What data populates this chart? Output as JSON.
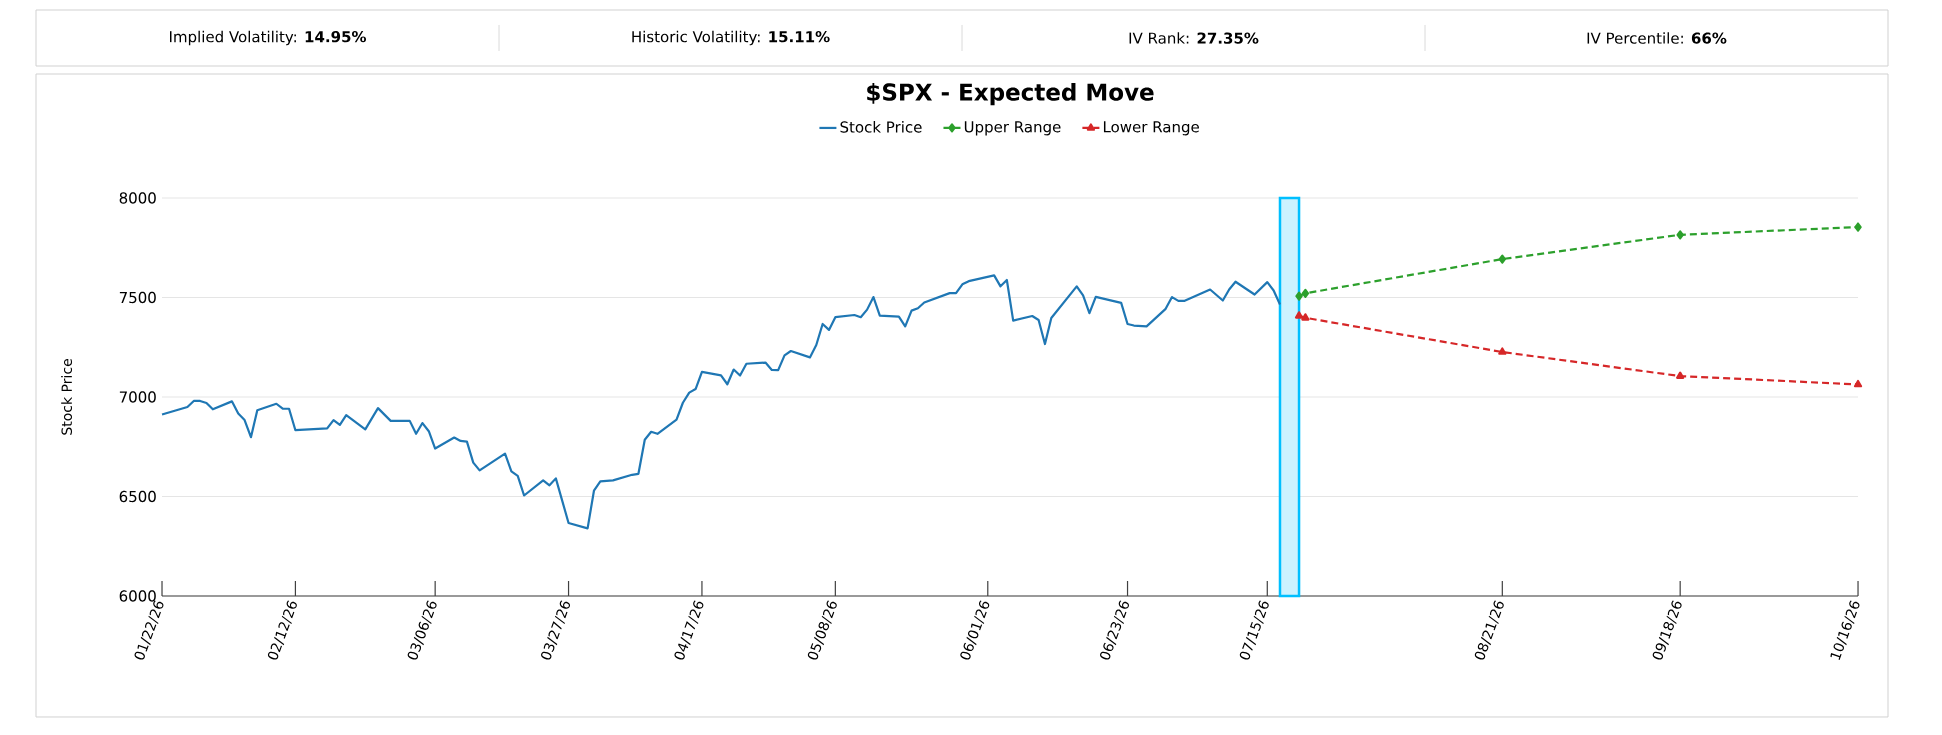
{
  "chart_data": {
    "type": "line",
    "title": "$SPX - Expected Move",
    "ylabel": "Stock Price",
    "annotations": [
      "Implied Volatility: **14.95%**",
      "Historic Volatility: **15.11%**",
      "IV Rank: **27.35%**",
      "IV Percentile: **66%**"
    ],
    "xlim": [
      "2026-01-22",
      "2026-10-16"
    ],
    "ylim": [
      6000,
      8000
    ],
    "xticks": [
      {
        "value": "2026-01-22",
        "label": "01/22/26"
      },
      {
        "value": "2026-02-12",
        "label": "02/12/26"
      },
      {
        "value": "2026-03-06",
        "label": "03/06/26"
      },
      {
        "value": "2026-03-27",
        "label": "03/27/26"
      },
      {
        "value": "2026-04-17",
        "label": "04/17/26"
      },
      {
        "value": "2026-05-08",
        "label": "05/08/26"
      },
      {
        "value": "2026-06-01",
        "label": "06/01/26"
      },
      {
        "value": "2026-06-23",
        "label": "06/23/26"
      },
      {
        "value": "2026-07-15",
        "label": "07/15/26"
      },
      {
        "value": "2026-08-21",
        "label": "08/21/26"
      },
      {
        "value": "2026-09-18",
        "label": "09/18/26"
      },
      {
        "value": "2026-10-16",
        "label": "10/16/26"
      }
    ],
    "yticks": [
      6000,
      6500,
      7000,
      7500,
      8000
    ],
    "grid": "y",
    "legend": "top",
    "bands": [
      {
        "axis": "x",
        "from": "2026-07-17",
        "to": "2026-07-20",
        "color": "#00bfff"
      }
    ],
    "series": [
      {
        "name": "Stock Price",
        "color": "#1f77b4",
        "marker": "none",
        "line_style": "solid",
        "x": [
          "2026-01-22",
          "2026-01-26",
          "2026-01-27",
          "2026-01-28",
          "2026-01-29",
          "2026-01-30",
          "2026-02-02",
          "2026-02-03",
          "2026-02-04",
          "2026-02-05",
          "2026-02-06",
          "2026-02-09",
          "2026-02-10",
          "2026-02-11",
          "2026-02-12",
          "2026-02-17",
          "2026-02-18",
          "2026-02-19",
          "2026-02-20",
          "2026-02-23",
          "2026-02-25",
          "2026-02-27",
          "2026-03-02",
          "2026-03-03",
          "2026-03-04",
          "2026-03-05",
          "2026-03-06",
          "2026-03-09",
          "2026-03-10",
          "2026-03-11",
          "2026-03-12",
          "2026-03-13",
          "2026-03-17",
          "2026-03-18",
          "2026-03-19",
          "2026-03-20",
          "2026-03-23",
          "2026-03-24",
          "2026-03-25",
          "2026-03-27",
          "2026-03-30",
          "2026-03-31",
          "2026-04-01",
          "2026-04-03",
          "2026-04-06",
          "2026-04-07",
          "2026-04-08",
          "2026-04-09",
          "2026-04-10",
          "2026-04-13",
          "2026-04-14",
          "2026-04-15",
          "2026-04-16",
          "2026-04-17",
          "2026-04-20",
          "2026-04-21",
          "2026-04-22",
          "2026-04-23",
          "2026-04-24",
          "2026-04-27",
          "2026-04-28",
          "2026-04-29",
          "2026-04-30",
          "2026-05-01",
          "2026-05-04",
          "2026-05-05",
          "2026-05-06",
          "2026-05-07",
          "2026-05-08",
          "2026-05-11",
          "2026-05-12",
          "2026-05-13",
          "2026-05-14",
          "2026-05-15",
          "2026-05-18",
          "2026-05-19",
          "2026-05-20",
          "2026-05-21",
          "2026-05-22",
          "2026-05-26",
          "2026-05-27",
          "2026-05-28",
          "2026-05-29",
          "2026-06-02",
          "2026-06-03",
          "2026-06-04",
          "2026-06-05",
          "2026-06-08",
          "2026-06-09",
          "2026-06-10",
          "2026-06-11",
          "2026-06-15",
          "2026-06-16",
          "2026-06-17",
          "2026-06-18",
          "2026-06-22",
          "2026-06-23",
          "2026-06-24",
          "2026-06-26",
          "2026-06-29",
          "2026-06-30",
          "2026-07-01",
          "2026-07-02",
          "2026-07-06",
          "2026-07-08",
          "2026-07-09",
          "2026-07-10",
          "2026-07-13",
          "2026-07-15",
          "2026-07-16",
          "2026-07-17"
        ],
        "values": [
          6912,
          6950,
          6980,
          6980,
          6970,
          6938,
          6978,
          6917,
          6884,
          6798,
          6933,
          6966,
          6941,
          6941,
          6833,
          6842,
          6884,
          6860,
          6909,
          6837,
          6944,
          6880,
          6880,
          6815,
          6869,
          6828,
          6741,
          6796,
          6779,
          6776,
          6670,
          6631,
          6715,
          6626,
          6604,
          6505,
          6581,
          6556,
          6591,
          6367,
          6340,
          6529,
          6576,
          6581,
          6609,
          6614,
          6785,
          6825,
          6815,
          6886,
          6971,
          7022,
          7040,
          7126,
          7109,
          7064,
          7138,
          7108,
          7167,
          7173,
          7136,
          7135,
          7209,
          7231,
          7199,
          7261,
          7367,
          7337,
          7401,
          7412,
          7401,
          7439,
          7502,
          7409,
          7404,
          7355,
          7434,
          7446,
          7475,
          7522,
          7522,
          7566,
          7582,
          7611,
          7556,
          7588,
          7384,
          7407,
          7387,
          7266,
          7397,
          7556,
          7510,
          7421,
          7503,
          7473,
          7367,
          7359,
          7355,
          7443,
          7502,
          7483,
          7483,
          7540,
          7485,
          7540,
          7579,
          7515,
          7577,
          7535,
          7465
        ]
      },
      {
        "name": "Upper Range",
        "color": "#2ca02c",
        "marker": "diamond",
        "line_style": "dashed",
        "x": [
          "2026-07-20",
          "2026-07-21",
          "2026-08-21",
          "2026-09-18",
          "2026-10-16"
        ],
        "values": [
          7507,
          7521,
          7693,
          7815,
          7854
        ]
      },
      {
        "name": "Lower Range",
        "color": "#d62728",
        "marker": "triangle",
        "line_style": "dashed",
        "x": [
          "2026-07-20",
          "2026-07-21",
          "2026-08-21",
          "2026-09-18",
          "2026-10-16"
        ],
        "values": [
          7408,
          7398,
          7226,
          7105,
          7063
        ]
      }
    ]
  }
}
